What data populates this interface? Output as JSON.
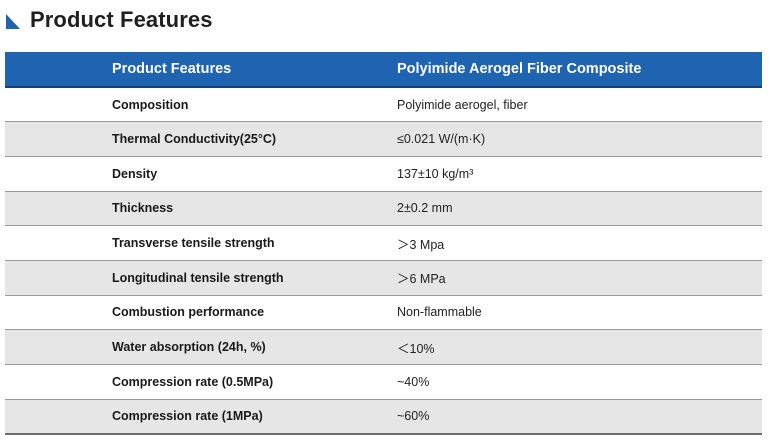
{
  "heading": {
    "title": "Product Features",
    "accent_color": "#1f63ad"
  },
  "table": {
    "header_color": "#1f64b0",
    "stripe_color": "#e6e6e6",
    "columns": [
      "Product Features",
      "Polyimide Aerogel Fiber Composite"
    ],
    "rows": [
      {
        "parameter": "Composition",
        "value": "Polyimide aerogel, fiber"
      },
      {
        "parameter": "Thermal Conductivity(25°C)",
        "value": "≤0.021 W/(m·K)"
      },
      {
        "parameter": "Density",
        "value": "137±10 kg/m³"
      },
      {
        "parameter": "Thickness",
        "value": "2±0.2 mm"
      },
      {
        "parameter": "Transverse tensile strength",
        "value": "＞3 Mpa"
      },
      {
        "parameter": "Longitudinal tensile strength",
        "value": "＞6 MPa"
      },
      {
        "parameter": "Combustion performance",
        "value": "Non-flammable"
      },
      {
        "parameter": "Water absorption (24h, %)",
        "value": "＜10%"
      },
      {
        "parameter": "Compression rate (0.5MPa)",
        "value": "~40%"
      },
      {
        "parameter": "Compression rate (1MPa)",
        "value": "~60%"
      }
    ]
  }
}
